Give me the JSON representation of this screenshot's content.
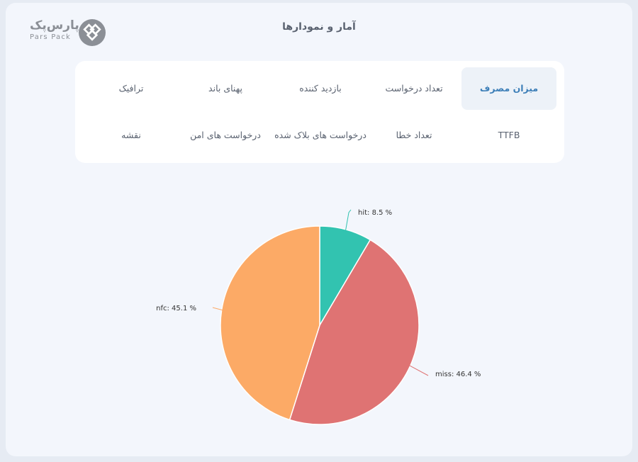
{
  "brand": {
    "name_fa": "پارس‌پک",
    "name_en": "Pars Pack",
    "logo_color": "#8b8f96"
  },
  "header": {
    "title": "آمار و نمودارها"
  },
  "tabs": [
    {
      "label": "میزان مصرف",
      "active": true
    },
    {
      "label": "تعداد درخواست",
      "active": false
    },
    {
      "label": "بازدید کننده",
      "active": false
    },
    {
      "label": "پهنای باند",
      "active": false
    },
    {
      "label": "ترافیک",
      "active": false
    },
    {
      "label": "TTFB",
      "active": false
    },
    {
      "label": "تعداد خطا",
      "active": false
    },
    {
      "label": "درخواست های بلاک شده",
      "active": false
    },
    {
      "label": "درخواست های امن",
      "active": false
    },
    {
      "label": "نقشه",
      "active": false
    }
  ],
  "chart_data": {
    "type": "pie",
    "categories": [
      "hit",
      "miss",
      "nfc"
    ],
    "values": [
      8.5,
      46.4,
      45.1
    ],
    "labels": [
      "hit: 8.5 %",
      "miss: 46.4 %",
      "nfc: 45.1 %"
    ],
    "colors": [
      "#32c3b0",
      "#df7373",
      "#fcaa66"
    ],
    "title": "",
    "legend": "none"
  }
}
